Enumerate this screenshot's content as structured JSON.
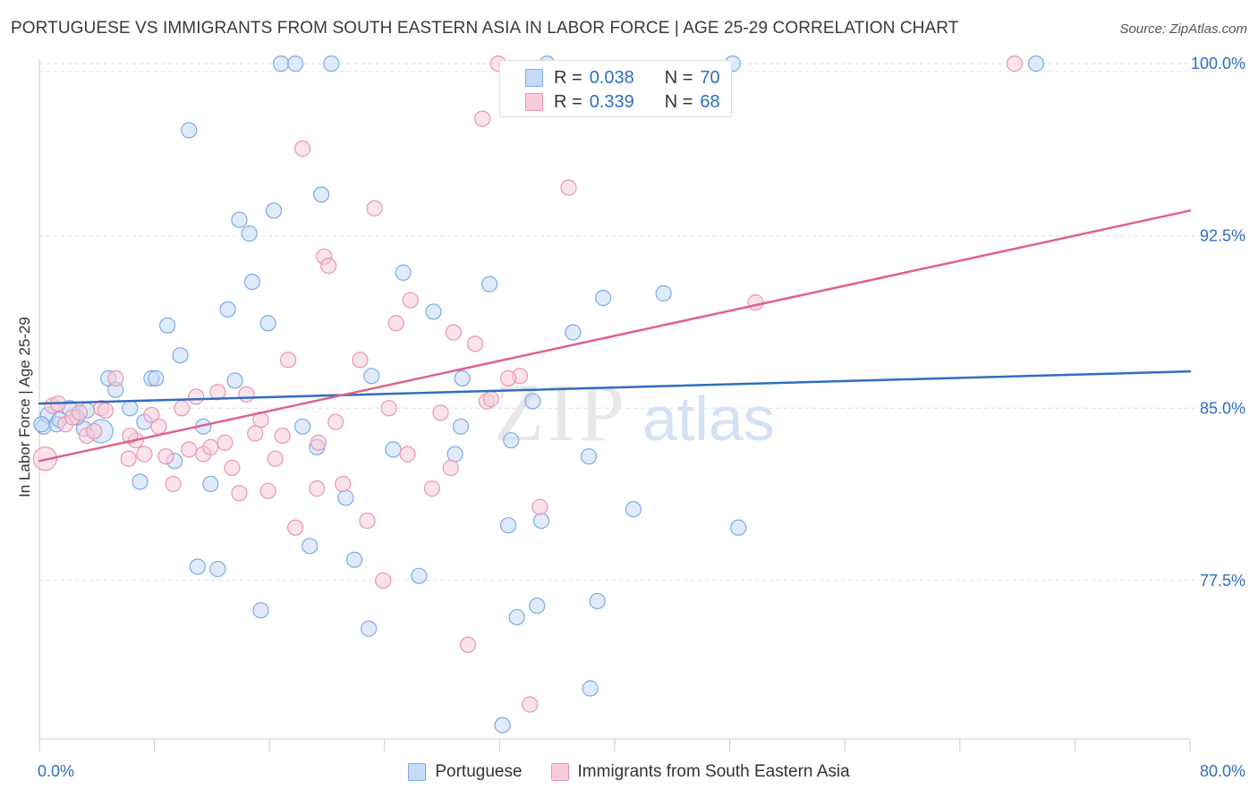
{
  "title": "PORTUGUESE VS IMMIGRANTS FROM SOUTH EASTERN ASIA IN LABOR FORCE | AGE 25-29 CORRELATION CHART",
  "source": "Source: ZipAtlas.com",
  "watermark": {
    "zip": "ZIP",
    "atlas": "atlas"
  },
  "legend": {
    "r_label": "R =",
    "n_label": "N =",
    "series": [
      {
        "name": "Portuguese",
        "r": "0.038",
        "n": "70",
        "color": "#7aaae6",
        "fill": "#c6dbf6",
        "line": "#2f6fc0"
      },
      {
        "name": "Immigrants from South Eastern Asia",
        "r": "0.339",
        "n": "68",
        "color": "#eb94b2",
        "fill": "#f8ccdb",
        "line": "#e0608c"
      }
    ]
  },
  "chart_data": {
    "type": "scatter",
    "title": "PORTUGUESE VS IMMIGRANTS FROM SOUTH EASTERN ASIA IN LABOR FORCE | AGE 25-29 CORRELATION CHART",
    "xlabel": "",
    "ylabel": "In Labor Force | Age 25-29",
    "xlim": [
      0,
      80
    ],
    "ylim": [
      70.6,
      100.9
    ],
    "x_tick_labels": [
      "0.0%",
      "80.0%"
    ],
    "y_ticks": [
      77.5,
      85.0,
      92.5,
      100.0
    ],
    "y_tick_labels": [
      "77.5%",
      "85.0%",
      "92.5%",
      "100.0%"
    ],
    "grid": true,
    "legend_position": "top-center",
    "series": [
      {
        "name": "Portuguese",
        "trend": {
          "x": [
            0,
            80
          ],
          "y": [
            85.2,
            86.6
          ]
        },
        "points": [
          [
            0.3,
            84.2
          ],
          [
            0.6,
            84.7
          ],
          [
            1.2,
            84.3
          ],
          [
            1.4,
            84.5
          ],
          [
            2.1,
            85.0
          ],
          [
            3.1,
            84.1
          ],
          [
            3.3,
            84.9
          ],
          [
            4.8,
            86.3
          ],
          [
            5.3,
            85.8
          ],
          [
            6.3,
            85.0
          ],
          [
            7.0,
            81.8
          ],
          [
            7.3,
            84.4
          ],
          [
            7.8,
            86.3
          ],
          [
            8.1,
            86.3
          ],
          [
            8.9,
            88.6
          ],
          [
            9.4,
            82.7
          ],
          [
            9.8,
            87.3
          ],
          [
            10.4,
            97.1
          ],
          [
            11.0,
            78.1
          ],
          [
            11.4,
            84.2
          ],
          [
            11.9,
            81.7
          ],
          [
            12.4,
            78.0
          ],
          [
            13.1,
            89.3
          ],
          [
            13.6,
            86.2
          ],
          [
            13.9,
            93.2
          ],
          [
            14.6,
            92.6
          ],
          [
            14.8,
            90.5
          ],
          [
            15.4,
            76.2
          ],
          [
            15.9,
            88.7
          ],
          [
            16.3,
            93.6
          ],
          [
            16.8,
            100.0
          ],
          [
            17.8,
            100.0
          ],
          [
            18.3,
            84.2
          ],
          [
            18.8,
            79.0
          ],
          [
            19.3,
            83.3
          ],
          [
            19.6,
            94.3
          ],
          [
            20.3,
            100.0
          ],
          [
            21.3,
            81.1
          ],
          [
            21.9,
            78.4
          ],
          [
            22.9,
            75.4
          ],
          [
            23.1,
            86.4
          ],
          [
            24.6,
            83.2
          ],
          [
            25.3,
            90.9
          ],
          [
            26.4,
            77.7
          ],
          [
            27.4,
            89.2
          ],
          [
            28.9,
            83.0
          ],
          [
            29.3,
            84.2
          ],
          [
            29.4,
            86.3
          ],
          [
            31.3,
            90.4
          ],
          [
            32.2,
            71.2
          ],
          [
            32.6,
            79.9
          ],
          [
            32.8,
            83.6
          ],
          [
            33.2,
            75.9
          ],
          [
            34.3,
            85.3
          ],
          [
            34.6,
            76.4
          ],
          [
            34.9,
            80.1
          ],
          [
            35.3,
            100.0
          ],
          [
            37.1,
            88.3
          ],
          [
            38.2,
            82.9
          ],
          [
            38.3,
            72.8
          ],
          [
            38.8,
            76.6
          ],
          [
            39.2,
            89.8
          ],
          [
            41.3,
            80.6
          ],
          [
            43.4,
            90.0
          ],
          [
            48.2,
            100.0
          ],
          [
            48.6,
            79.8
          ],
          [
            69.3,
            100.0
          ],
          [
            0.15,
            84.3
          ],
          [
            2.6,
            84.6
          ],
          [
            4.3,
            84.0
          ]
        ]
      },
      {
        "name": "Immigrants from South Eastern Asia",
        "trend": {
          "x": [
            0,
            80
          ],
          "y": [
            82.7,
            93.6
          ]
        },
        "points": [
          [
            0.4,
            82.8
          ],
          [
            0.9,
            85.1
          ],
          [
            1.3,
            85.2
          ],
          [
            1.8,
            84.3
          ],
          [
            2.3,
            84.6
          ],
          [
            2.8,
            84.8
          ],
          [
            3.3,
            83.8
          ],
          [
            3.8,
            84.0
          ],
          [
            4.3,
            85.0
          ],
          [
            5.3,
            86.3
          ],
          [
            6.2,
            82.8
          ],
          [
            6.7,
            83.6
          ],
          [
            7.3,
            83.0
          ],
          [
            7.8,
            84.7
          ],
          [
            8.3,
            84.2
          ],
          [
            8.8,
            82.9
          ],
          [
            9.3,
            81.7
          ],
          [
            9.9,
            85.0
          ],
          [
            10.4,
            83.2
          ],
          [
            10.9,
            85.5
          ],
          [
            11.4,
            83.0
          ],
          [
            11.9,
            83.3
          ],
          [
            12.4,
            85.7
          ],
          [
            12.9,
            83.5
          ],
          [
            13.4,
            82.4
          ],
          [
            13.9,
            81.3
          ],
          [
            14.4,
            85.6
          ],
          [
            15.0,
            83.9
          ],
          [
            15.4,
            84.5
          ],
          [
            15.9,
            81.4
          ],
          [
            16.4,
            82.8
          ],
          [
            16.9,
            83.8
          ],
          [
            17.3,
            87.1
          ],
          [
            17.8,
            79.8
          ],
          [
            18.3,
            96.3
          ],
          [
            19.3,
            81.5
          ],
          [
            19.4,
            83.5
          ],
          [
            19.8,
            91.6
          ],
          [
            20.1,
            91.2
          ],
          [
            20.6,
            84.4
          ],
          [
            21.1,
            81.7
          ],
          [
            22.3,
            87.1
          ],
          [
            22.8,
            80.1
          ],
          [
            23.3,
            93.7
          ],
          [
            23.9,
            77.5
          ],
          [
            24.3,
            85.0
          ],
          [
            24.8,
            88.7
          ],
          [
            25.6,
            83.0
          ],
          [
            25.8,
            89.7
          ],
          [
            27.3,
            81.5
          ],
          [
            27.9,
            84.8
          ],
          [
            28.6,
            82.4
          ],
          [
            28.8,
            88.3
          ],
          [
            29.8,
            74.7
          ],
          [
            30.3,
            87.8
          ],
          [
            30.8,
            97.6
          ],
          [
            31.1,
            85.3
          ],
          [
            31.4,
            85.4
          ],
          [
            31.9,
            100.0
          ],
          [
            33.4,
            86.4
          ],
          [
            34.1,
            72.1
          ],
          [
            34.8,
            80.7
          ],
          [
            36.8,
            94.6
          ],
          [
            49.8,
            89.6
          ],
          [
            67.8,
            100.0
          ],
          [
            4.6,
            84.9
          ],
          [
            6.3,
            83.8
          ],
          [
            32.6,
            86.3
          ]
        ]
      }
    ]
  }
}
